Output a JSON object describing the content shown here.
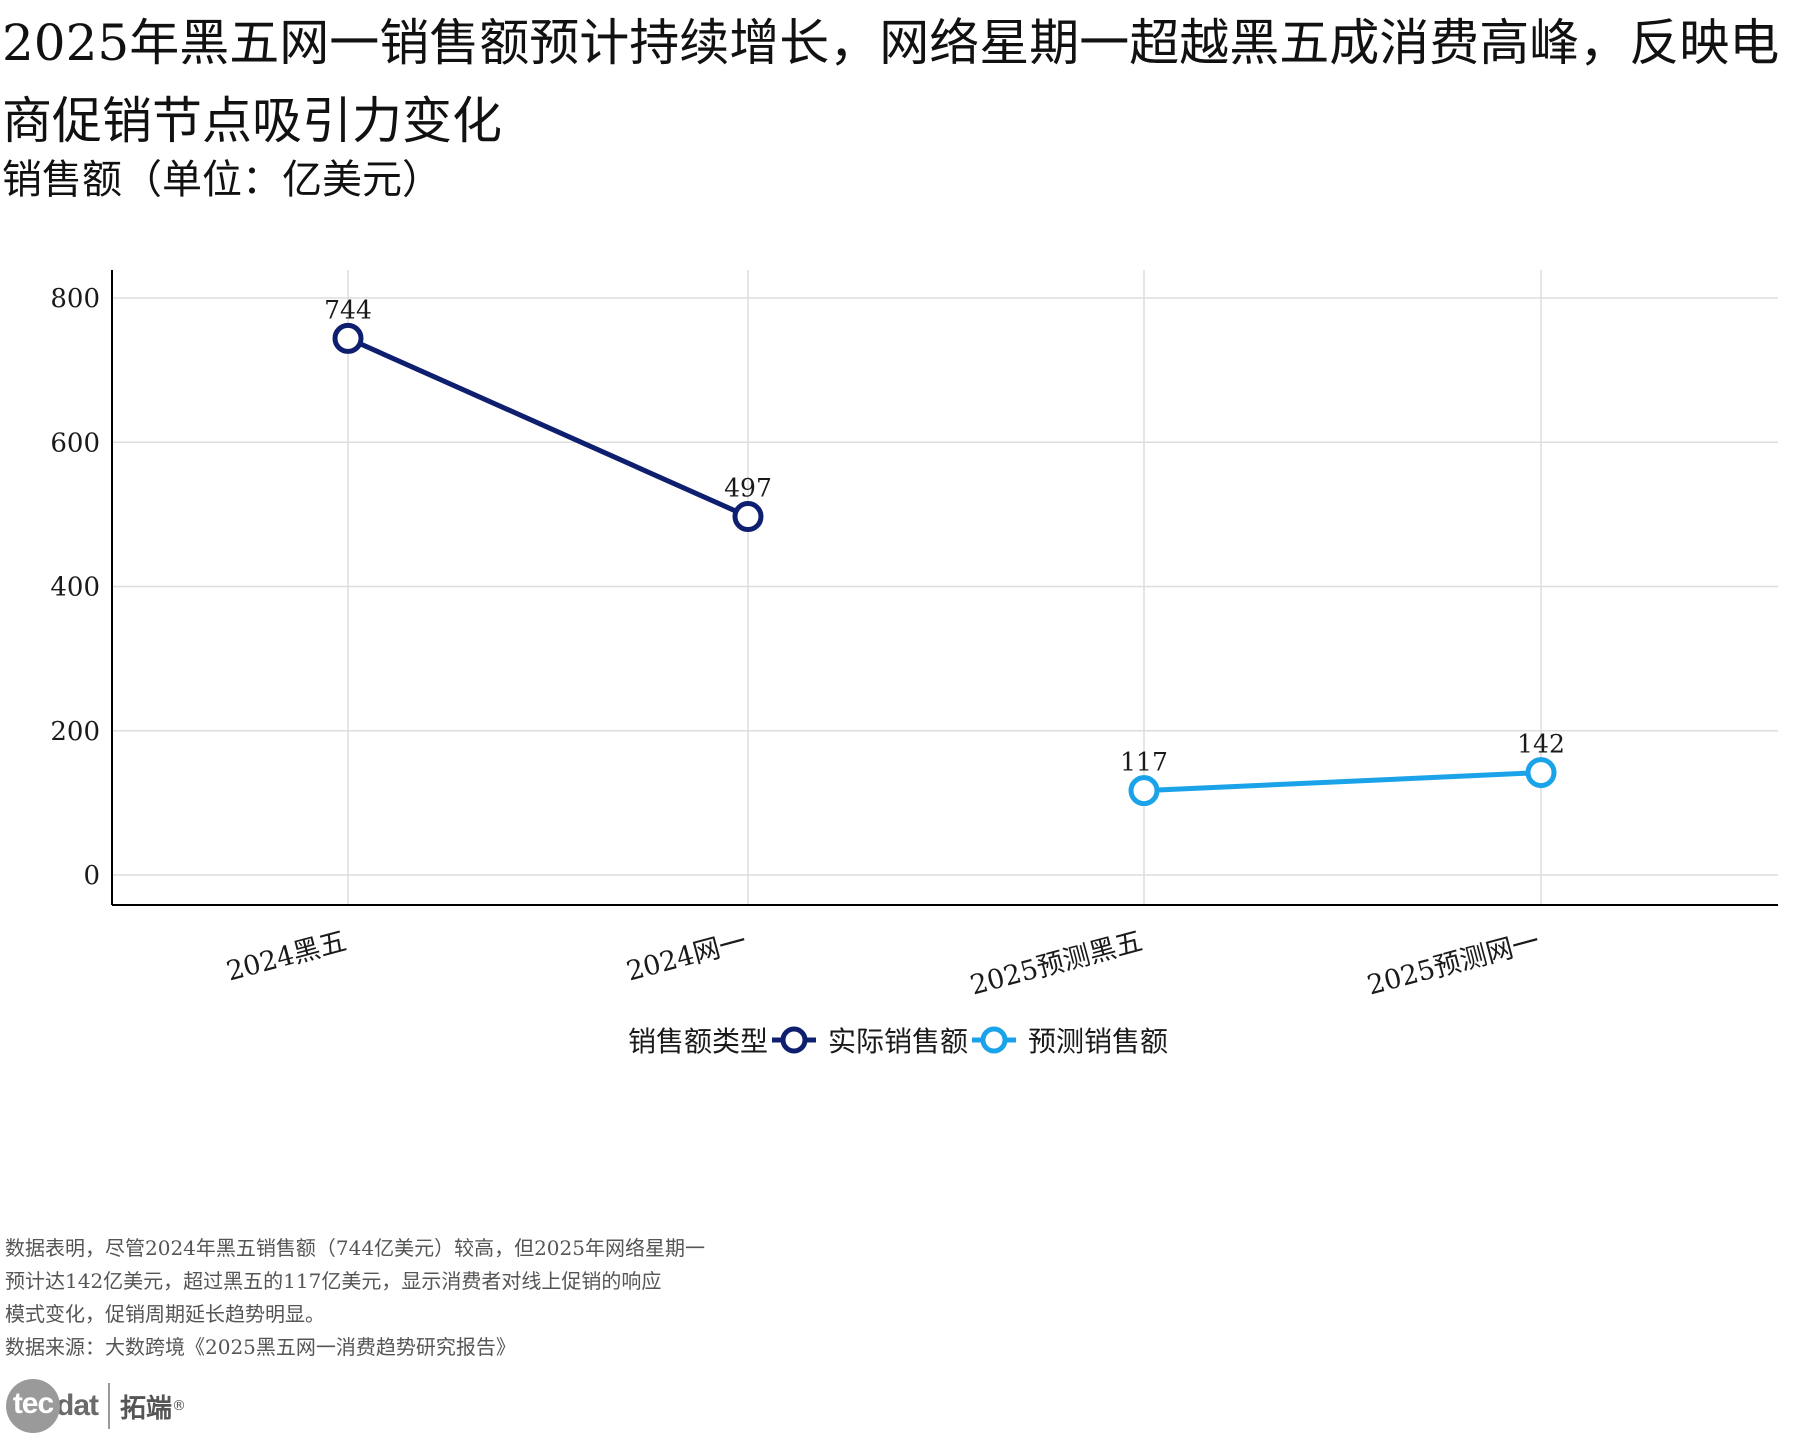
{
  "title": "2025年黑五网一销售额预计持续增长，网络星期一超越黑五成消费高峰，反映电商促销节点吸引力变化",
  "subtitle": "销售额（单位：亿美元）",
  "legend": {
    "title": "销售额类型",
    "items": [
      {
        "label": "实际销售额",
        "color": "#0d1f6e"
      },
      {
        "label": "预测销售额",
        "color": "#1aa3e8"
      }
    ]
  },
  "chart_data": {
    "type": "line",
    "categories": [
      "2024黑五",
      "2024网一",
      "2025预测黑五",
      "2025预测网一"
    ],
    "series": [
      {
        "name": "实际销售额",
        "color": "#0d1f6e",
        "points": [
          {
            "x": "2024黑五",
            "y": 744
          },
          {
            "x": "2024网一",
            "y": 497
          }
        ]
      },
      {
        "name": "预测销售额",
        "color": "#1aa3e8",
        "points": [
          {
            "x": "2025预测黑五",
            "y": 117
          },
          {
            "x": "2025预测网一",
            "y": 142
          }
        ]
      }
    ],
    "ylim": [
      0,
      800
    ],
    "yticks": [
      0,
      200,
      400,
      600,
      800
    ],
    "ytick_labels": [
      "0",
      "200",
      "400",
      "600",
      "800"
    ],
    "grid": true,
    "legend_position": "bottom",
    "title": "2025年黑五网一销售额预计持续增长，网络星期一超越黑五成消费高峰，反映电商促销节点吸引力变化",
    "ylabel": "销售额（单位：亿美元）",
    "xlabel": ""
  },
  "footer": {
    "lines": [
      "数据表明，尽管2024年黑五销售额（744亿美元）较高，但2025年网络星期一",
      "预计达142亿美元，超过黑五的117亿美元，显示消费者对线上促销的响应",
      "模式变化，促销周期延长趋势明显。",
      "数据来源：大数跨境《2025黑五网一消费趋势研究报告》"
    ]
  },
  "logo": {
    "circle_text": "tec",
    "rest_text": "dat",
    "cn_text": "拓端",
    "reg_mark": "®"
  }
}
